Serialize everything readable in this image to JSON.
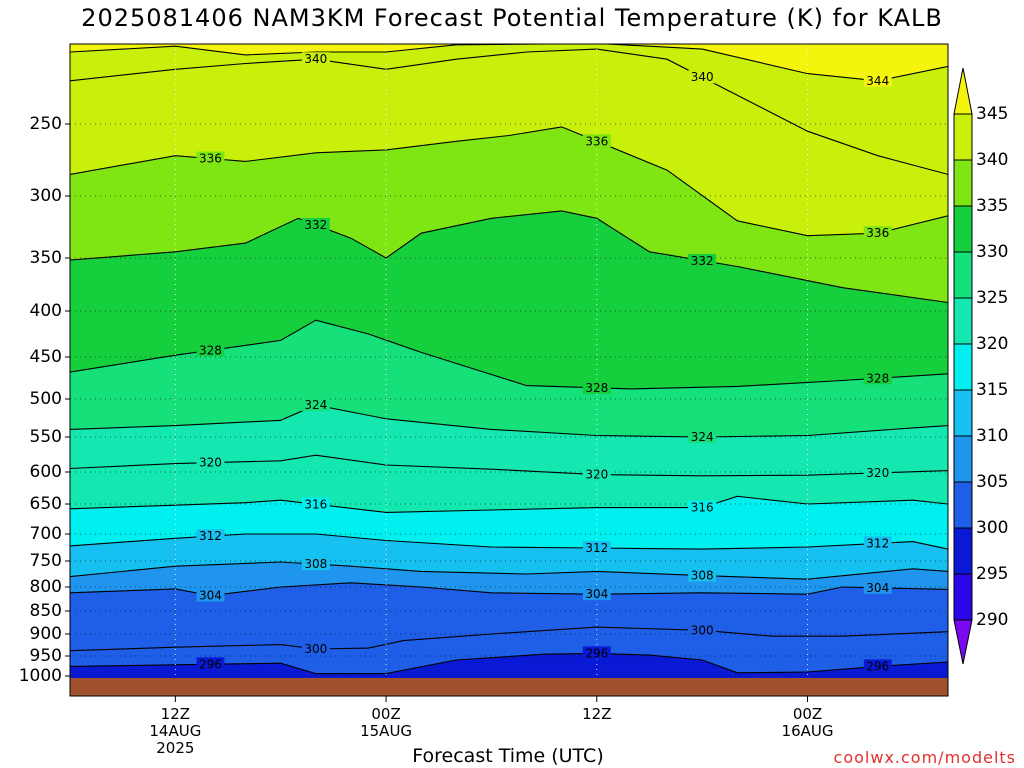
{
  "title": "2025081406 NAM3KM Forecast Potential Temperature (K) for KALB",
  "footer_brand": "coolwx.com/modelts",
  "chart_data": {
    "type": "heatmap",
    "title": "2025081406 NAM3KM Forecast Potential Temperature (K) for KALB",
    "xlabel": "Forecast Time (UTC)",
    "ylabel": "",
    "y_axis": "pressure (hPa), inverted",
    "ylim": [
      1000,
      200
    ],
    "y_ticks": [
      "250",
      "300",
      "350",
      "400",
      "450",
      "500",
      "550",
      "600",
      "650",
      "700",
      "750",
      "800",
      "850",
      "900",
      "950",
      "1000"
    ],
    "x_range_hours_from_init": [
      0,
      50
    ],
    "x_ticks": [
      {
        "hour": 6,
        "lines": [
          "12Z",
          "14AUG",
          "2025"
        ]
      },
      {
        "hour": 18,
        "lines": [
          "00Z",
          "15AUG"
        ]
      },
      {
        "hour": 30,
        "lines": [
          "12Z"
        ]
      },
      {
        "hour": 42,
        "lines": [
          "00Z",
          "16AUG"
        ]
      },
      {
        "hour": 54,
        "lines": [
          "12Z"
        ]
      }
    ],
    "grid": true,
    "legend": "colorbar-right",
    "colorbar_levels": [
      "290",
      "295",
      "300",
      "305",
      "310",
      "315",
      "320",
      "325",
      "330",
      "335",
      "340",
      "345"
    ],
    "colorbar_colors": [
      "#7a08f2",
      "#2a06e8",
      "#0a1ad4",
      "#1f5ee6",
      "#1f95ee",
      "#16c0f0",
      "#00f0f0",
      "#14e8b0",
      "#15e07a",
      "#16cf3c",
      "#7fe614",
      "#c8f00a",
      "#f4f40c"
    ],
    "contours": [
      {
        "level": 296,
        "profile": [
          [
            0,
            976
          ],
          [
            6,
            972
          ],
          [
            12,
            968
          ],
          [
            14,
            994
          ],
          [
            18,
            994
          ],
          [
            22,
            960
          ],
          [
            27,
            946
          ],
          [
            30,
            944
          ],
          [
            33,
            948
          ],
          [
            36,
            960
          ],
          [
            38,
            992
          ],
          [
            42,
            990
          ],
          [
            46,
            976
          ],
          [
            50,
            965
          ]
        ]
      },
      {
        "level": 300,
        "profile": [
          [
            0,
            938
          ],
          [
            6,
            930
          ],
          [
            12,
            924
          ],
          [
            14,
            934
          ],
          [
            17,
            932
          ],
          [
            19,
            915
          ],
          [
            24,
            900
          ],
          [
            30,
            885
          ],
          [
            36,
            892
          ],
          [
            40,
            905
          ],
          [
            44,
            905
          ],
          [
            50,
            895
          ]
        ]
      },
      {
        "level": 304,
        "profile": [
          [
            0,
            812
          ],
          [
            6,
            804
          ],
          [
            8,
            818
          ],
          [
            12,
            800
          ],
          [
            16,
            792
          ],
          [
            20,
            800
          ],
          [
            24,
            812
          ],
          [
            30,
            815
          ],
          [
            36,
            812
          ],
          [
            42,
            815
          ],
          [
            44,
            800
          ],
          [
            50,
            805
          ]
        ]
      },
      {
        "level": 308,
        "profile": [
          [
            0,
            780
          ],
          [
            6,
            760
          ],
          [
            12,
            752
          ],
          [
            16,
            760
          ],
          [
            20,
            770
          ],
          [
            26,
            775
          ],
          [
            30,
            770
          ],
          [
            36,
            778
          ],
          [
            42,
            785
          ],
          [
            48,
            765
          ],
          [
            50,
            770
          ]
        ]
      },
      {
        "level": 312,
        "profile": [
          [
            0,
            722
          ],
          [
            6,
            708
          ],
          [
            10,
            700
          ],
          [
            14,
            700
          ],
          [
            18,
            712
          ],
          [
            24,
            724
          ],
          [
            30,
            726
          ],
          [
            36,
            728
          ],
          [
            42,
            724
          ],
          [
            48,
            714
          ],
          [
            50,
            728
          ]
        ]
      },
      {
        "level": 316,
        "profile": [
          [
            0,
            658
          ],
          [
            6,
            652
          ],
          [
            10,
            648
          ],
          [
            12,
            644
          ],
          [
            18,
            664
          ],
          [
            24,
            660
          ],
          [
            30,
            656
          ],
          [
            36,
            656
          ],
          [
            38,
            638
          ],
          [
            42,
            650
          ],
          [
            48,
            644
          ],
          [
            50,
            650
          ]
        ]
      },
      {
        "level": 320,
        "profile": [
          [
            0,
            595
          ],
          [
            6,
            588
          ],
          [
            12,
            584
          ],
          [
            14,
            576
          ],
          [
            18,
            590
          ],
          [
            24,
            596
          ],
          [
            30,
            604
          ],
          [
            36,
            606
          ],
          [
            42,
            605
          ],
          [
            50,
            598
          ]
        ]
      },
      {
        "level": 324,
        "profile": [
          [
            0,
            540
          ],
          [
            6,
            535
          ],
          [
            12,
            528
          ],
          [
            14,
            508
          ],
          [
            18,
            526
          ],
          [
            24,
            540
          ],
          [
            30,
            548
          ],
          [
            36,
            550
          ],
          [
            42,
            548
          ],
          [
            48,
            538
          ],
          [
            50,
            535
          ]
        ]
      },
      {
        "level": 328,
        "profile": [
          [
            0,
            468
          ],
          [
            6,
            448
          ],
          [
            12,
            432
          ],
          [
            14,
            410
          ],
          [
            17,
            425
          ],
          [
            20,
            445
          ],
          [
            26,
            484
          ],
          [
            32,
            488
          ],
          [
            38,
            485
          ],
          [
            44,
            478
          ],
          [
            50,
            470
          ]
        ]
      },
      {
        "level": 332,
        "profile": [
          [
            0,
            352
          ],
          [
            6,
            345
          ],
          [
            10,
            338
          ],
          [
            13,
            318
          ],
          [
            16,
            334
          ],
          [
            18,
            350
          ],
          [
            20,
            330
          ],
          [
            24,
            318
          ],
          [
            28,
            312
          ],
          [
            30,
            318
          ],
          [
            33,
            345
          ],
          [
            38,
            358
          ],
          [
            44,
            378
          ],
          [
            50,
            392
          ]
        ]
      },
      {
        "level": 336,
        "profile": [
          [
            0,
            285
          ],
          [
            6,
            272
          ],
          [
            10,
            276
          ],
          [
            14,
            270
          ],
          [
            18,
            268
          ],
          [
            22,
            262
          ],
          [
            25,
            258
          ],
          [
            28,
            252
          ],
          [
            30,
            262
          ],
          [
            34,
            282
          ],
          [
            38,
            320
          ],
          [
            42,
            332
          ],
          [
            46,
            330
          ],
          [
            50,
            316
          ]
        ]
      },
      {
        "level": 340,
        "profile": [
          [
            0,
            220
          ],
          [
            6,
            212
          ],
          [
            10,
            208
          ],
          [
            14,
            205
          ],
          [
            18,
            212
          ],
          [
            22,
            205
          ],
          [
            26,
            200
          ],
          [
            30,
            198
          ],
          [
            34,
            205
          ],
          [
            38,
            230
          ],
          [
            42,
            255
          ],
          [
            46,
            272
          ],
          [
            50,
            285
          ]
        ]
      },
      {
        "level": 344,
        "profile": [
          [
            0,
            200
          ],
          [
            6,
            196
          ],
          [
            10,
            202
          ],
          [
            14,
            200
          ],
          [
            18,
            200
          ],
          [
            22,
            195
          ],
          [
            30,
            194
          ],
          [
            36,
            198
          ],
          [
            42,
            215
          ],
          [
            46,
            220
          ],
          [
            50,
            210
          ]
        ]
      }
    ]
  }
}
